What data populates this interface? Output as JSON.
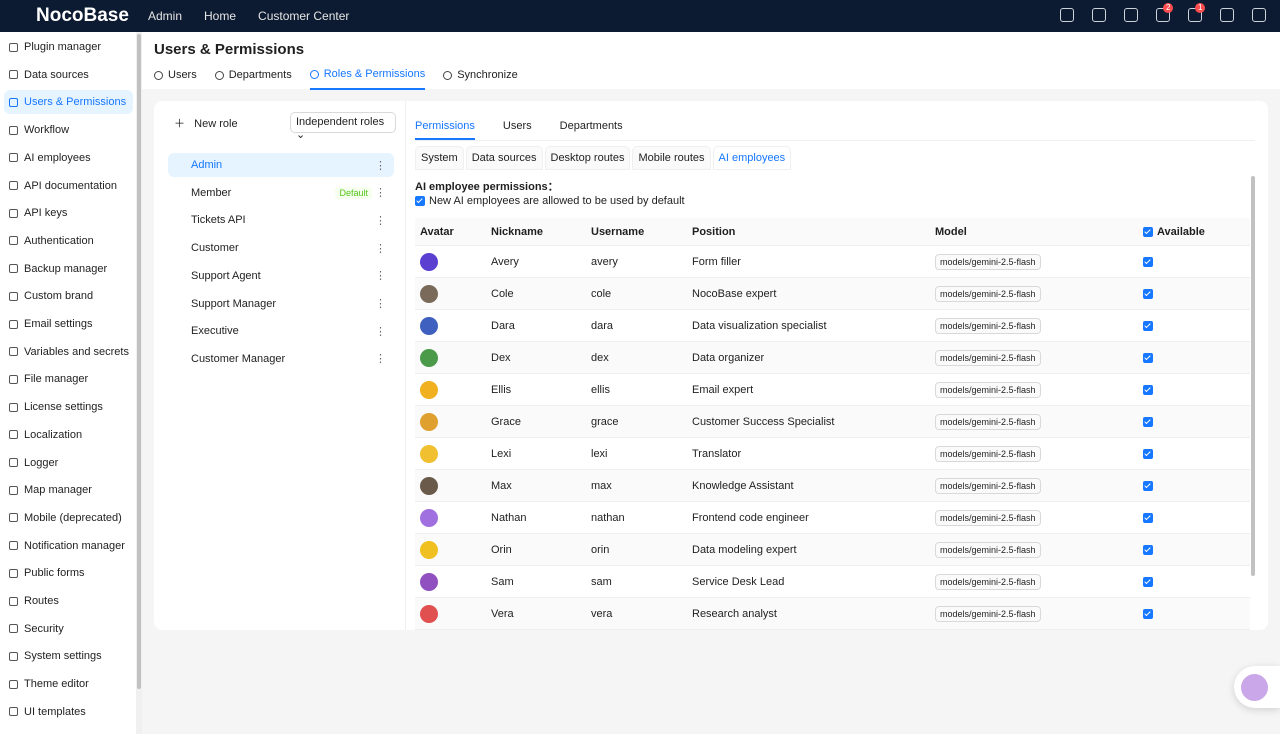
{
  "topbar": {
    "logo": "NocoBase",
    "nav": [
      "Admin",
      "Home",
      "Customer Center"
    ],
    "badges": [
      "2",
      "1"
    ]
  },
  "sidebar": {
    "items": [
      "Plugin manager",
      "Data sources",
      "Users & Permissions",
      "Workflow",
      "AI employees",
      "API documentation",
      "API keys",
      "Authentication",
      "Backup manager",
      "Custom brand",
      "Email settings",
      "Variables and secrets",
      "File manager",
      "License settings",
      "Localization",
      "Logger",
      "Map manager",
      "Mobile (deprecated)",
      "Notification manager",
      "Public forms",
      "Routes",
      "Security",
      "System settings",
      "Theme editor",
      "UI templates"
    ],
    "active": "Users & Permissions"
  },
  "header": {
    "title": "Users & Permissions",
    "tabs": [
      "Users",
      "Departments",
      "Roles & Permissions",
      "Synchronize"
    ],
    "active_tab": "Roles & Permissions"
  },
  "roles": {
    "new_role": "New role",
    "mode": "Independent roles",
    "items": [
      "Admin",
      "Member",
      "Tickets API",
      "Customer",
      "Support Agent",
      "Support Manager",
      "Executive",
      "Customer Manager"
    ],
    "active": "Admin",
    "default_role": "Member",
    "default_tag": "Default"
  },
  "panel": {
    "tabs": [
      "Permissions",
      "Users",
      "Departments"
    ],
    "active_tab": "Permissions",
    "subtabs": [
      "System",
      "Data sources",
      "Desktop routes",
      "Mobile routes",
      "AI employees"
    ],
    "active_subtab": "AI employees",
    "section_title": "AI employee permissions：",
    "default_checkbox": "New AI employees are allowed to be used by default"
  },
  "table": {
    "columns": [
      "Avatar",
      "Nickname",
      "Username",
      "Position",
      "Model",
      "Available"
    ],
    "rows": [
      [
        "Avery",
        "avery",
        "Form filler",
        "models/gemini-2.5-flash"
      ],
      [
        "Cole",
        "cole",
        "NocoBase expert",
        "models/gemini-2.5-flash"
      ],
      [
        "Dara",
        "dara",
        "Data visualization specialist",
        "models/gemini-2.5-flash"
      ],
      [
        "Dex",
        "dex",
        "Data organizer",
        "models/gemini-2.5-flash"
      ],
      [
        "Ellis",
        "ellis",
        "Email expert",
        "models/gemini-2.5-flash"
      ],
      [
        "Grace",
        "grace",
        "Customer Success Specialist",
        "models/gemini-2.5-flash"
      ],
      [
        "Lexi",
        "lexi",
        "Translator",
        "models/gemini-2.5-flash"
      ],
      [
        "Max",
        "max",
        "Knowledge Assistant",
        "models/gemini-2.5-flash"
      ],
      [
        "Nathan",
        "nathan",
        "Frontend code engineer",
        "models/gemini-2.5-flash"
      ],
      [
        "Orin",
        "orin",
        "Data modeling expert",
        "models/gemini-2.5-flash"
      ],
      [
        "Sam",
        "sam",
        "Service Desk Lead",
        "models/gemini-2.5-flash"
      ],
      [
        "Vera",
        "vera",
        "Research analyst",
        "models/gemini-2.5-flash"
      ]
    ]
  }
}
